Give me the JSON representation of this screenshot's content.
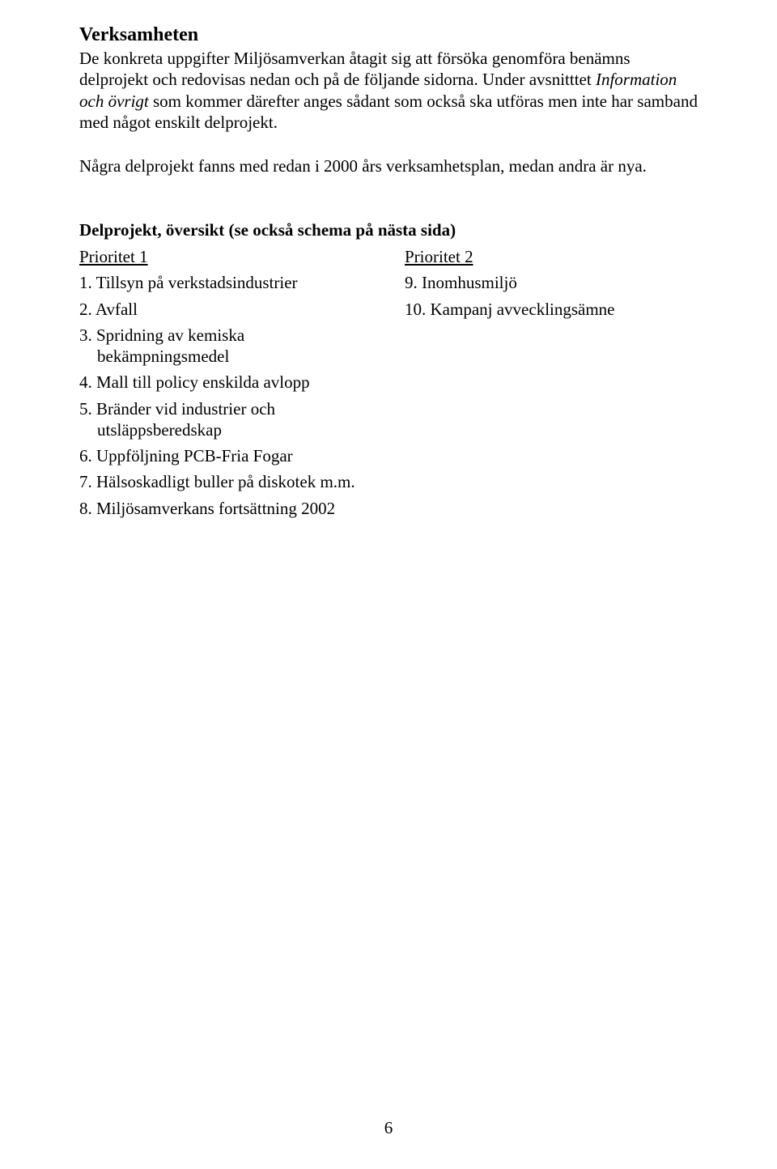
{
  "heading": "Verksamheten",
  "para1_before_italic": "De konkreta uppgifter Miljösamverkan åtagit sig att försöka genomföra benämns delprojekt och redovisas nedan och på de följande sidorna. Under avsnitttet ",
  "para1_italic": "Information och övrigt",
  "para1_after_italic": " som kommer därefter anges sådant som också ska utföras men inte har samband med något enskilt delprojekt.",
  "para2": "Några delprojekt fanns med redan i 2000 års verksamhetsplan, medan andra är nya.",
  "sub_heading": "Delprojekt, översikt (se också schema på nästa sida)",
  "col1": {
    "head": "Prioritet 1",
    "items": [
      "1. Tillsyn på verkstadsindustrier",
      "2. Avfall",
      "3. Spridning av kemiska bekämpningsmedel",
      "4. Mall till policy enskilda avlopp",
      "5. Bränder vid industrier och utsläppsberedskap",
      "6. Uppföljning PCB-Fria Fogar",
      "7. Hälsoskadligt buller på diskotek m.m.",
      "8. Miljösamverkans fortsättning 2002"
    ]
  },
  "col2": {
    "head": "Prioritet 2",
    "items": [
      "9. Inomhusmiljö",
      "10. Kampanj avvecklingsämne"
    ]
  },
  "page_number": "6"
}
